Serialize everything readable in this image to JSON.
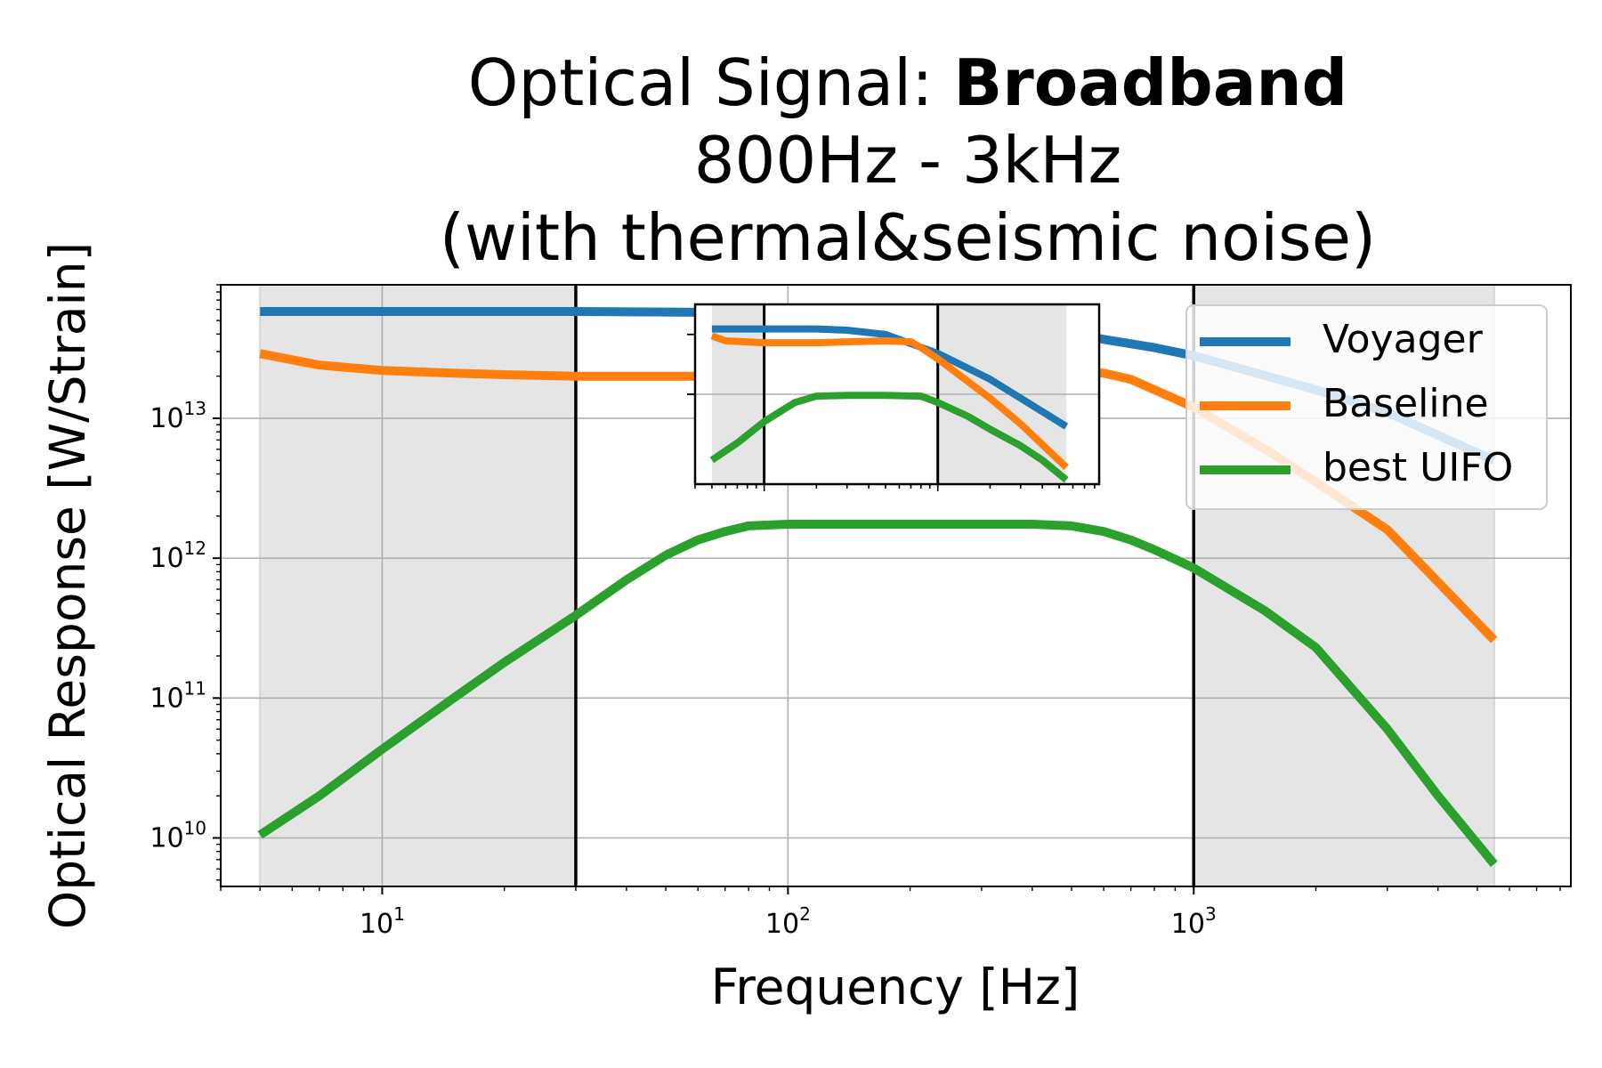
{
  "chart_data": {
    "type": "line",
    "title": {
      "line1_prefix": "Optical Signal: ",
      "line1_bold": "Broadband",
      "line2": "800Hz - 3kHz",
      "line3": "(with thermal&seismic noise)"
    },
    "xlabel": "Frequency [Hz]",
    "ylabel": "Optical Response [W/Strain]",
    "xscale": "log",
    "yscale": "log",
    "xlim": [
      4,
      8500
    ],
    "ylim": [
      4500000000.0,
      90000000000000.0
    ],
    "grid": true,
    "legend_position": "top-right",
    "x_ticks": [
      {
        "base": "10",
        "exp": "1",
        "value": 10
      },
      {
        "base": "10",
        "exp": "2",
        "value": 100
      },
      {
        "base": "10",
        "exp": "3",
        "value": 1000
      }
    ],
    "y_ticks": [
      {
        "base": "10",
        "exp": "10",
        "value": 10000000000.0
      },
      {
        "base": "10",
        "exp": "11",
        "value": 100000000000.0
      },
      {
        "base": "10",
        "exp": "12",
        "value": 1000000000000.0
      },
      {
        "base": "10",
        "exp": "13",
        "value": 10000000000000.0
      }
    ],
    "shaded_regions": [
      [
        5,
        30
      ],
      [
        1000,
        5500
      ]
    ],
    "vertical_lines": [
      30,
      1000
    ],
    "series": [
      {
        "name": "Voyager",
        "color": "#1f77b4",
        "x": [
          5,
          10,
          20,
          30,
          50,
          80,
          100,
          150,
          200,
          300,
          500,
          800,
          1000,
          2000,
          3000,
          5500
        ],
        "y": [
          58000000000000.0,
          58000000000000.0,
          58000000000000.0,
          58000000000000.0,
          57500000000000.0,
          57000000000000.0,
          57000000000000.0,
          56000000000000.0,
          53000000000000.0,
          48000000000000.0,
          40000000000000.0,
          32000000000000.0,
          28000000000000.0,
          16000000000000.0,
          11000000000000.0,
          5000000000000.0
        ]
      },
      {
        "name": "Baseline",
        "color": "#ff7f0e",
        "x": [
          5,
          7,
          10,
          15,
          20,
          30,
          50,
          80,
          100,
          150,
          200,
          300,
          400,
          500,
          600,
          700,
          800,
          1000,
          1500,
          2000,
          3000,
          5500
        ],
        "y": [
          29000000000000.0,
          24000000000000.0,
          22000000000000.0,
          21000000000000.0,
          20500000000000.0,
          20000000000000.0,
          20000000000000.0,
          20000000000000.0,
          20000000000000.0,
          20000000000000.0,
          20500000000000.0,
          21000000000000.0,
          21500000000000.0,
          22000000000000.0,
          21000000000000.0,
          19000000000000.0,
          16000000000000.0,
          12000000000000.0,
          6000000000000.0,
          3500000000000.0,
          1600000000000.0,
          260000000000.0
        ]
      },
      {
        "name": "best UIFO",
        "color": "#2ca02c",
        "x": [
          5,
          7,
          10,
          15,
          20,
          30,
          40,
          50,
          60,
          70,
          80,
          100,
          150,
          200,
          300,
          400,
          500,
          600,
          700,
          800,
          1000,
          1500,
          2000,
          3000,
          4000,
          5500
        ],
        "y": [
          10500000000.0,
          20000000000.0,
          43000000000.0,
          100000000000.0,
          180000000000.0,
          390000000000.0,
          700000000000.0,
          1050000000000.0,
          1350000000000.0,
          1550000000000.0,
          1700000000000.0,
          1750000000000.0,
          1750000000000.0,
          1750000000000.0,
          1750000000000.0,
          1750000000000.0,
          1700000000000.0,
          1550000000000.0,
          1350000000000.0,
          1150000000000.0,
          850000000000.0,
          420000000000.0,
          230000000000.0,
          60000000000.0,
          20000000000.0,
          6500000000.0
        ]
      }
    ],
    "inset": {
      "xlim": [
        40,
        8500
      ],
      "ylim_log10": [
        11.95,
        14.05
      ],
      "vertical_lines": [
        100,
        1000
      ],
      "shaded_regions": [
        [
          50,
          100
        ],
        [
          1000,
          5500
        ]
      ],
      "series": [
        {
          "name": "Voyager",
          "x": [
            50,
            100,
            200,
            300,
            500,
            1000,
            2000,
            3000,
            5500
          ],
          "y": [
            58000000000000.0,
            58000000000000.0,
            58000000000000.0,
            56000000000000.0,
            50000000000000.0,
            30000000000000.0,
            15000000000000.0,
            9000000000000.0,
            4200000000000.0
          ]
        },
        {
          "name": "Baseline",
          "x": [
            50,
            60,
            100,
            200,
            300,
            500,
            700,
            800,
            1000,
            2000,
            3000,
            5500
          ],
          "y": [
            48000000000000.0,
            42000000000000.0,
            40000000000000.0,
            40000000000000.0,
            41000000000000.0,
            42000000000000.0,
            41000000000000.0,
            35000000000000.0,
            26000000000000.0,
            9000000000000.0,
            4500000000000.0,
            1400000000000.0
          ]
        },
        {
          "name": "best UIFO",
          "x": [
            50,
            70,
            100,
            150,
            200,
            300,
            500,
            800,
            1000,
            1500,
            2000,
            3000,
            4000,
            5500
          ],
          "y": [
            1700000000000.0,
            2700000000000.0,
            4800000000000.0,
            8000000000000.0,
            9500000000000.0,
            9700000000000.0,
            9700000000000.0,
            9500000000000.0,
            8000000000000.0,
            5500000000000.0,
            3900000000000.0,
            2500000000000.0,
            1700000000000.0,
            1000000000000.0
          ]
        }
      ]
    }
  }
}
